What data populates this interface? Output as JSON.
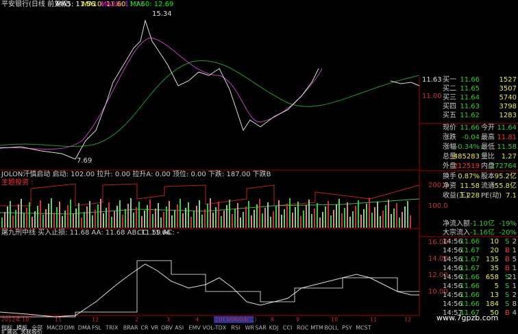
{
  "header": {
    "title": "平安银行(日线 前复权)",
    "ma": [
      "MA5: 11.56",
      "MA10: 11.60",
      "MA20: 11.73",
      "MA60: 12.69"
    ]
  },
  "price_chart": {
    "high_label": "15.34",
    "low_label": "7.69",
    "price_ticks": [
      "11.63",
      "11.00"
    ]
  },
  "indicator1": {
    "title": "JOLON汗慎启动 启动: 102.00 拉升: 0.00 拉升A: 0.00 顶位: 0.00 下跌: 187.00 下跌B",
    "subtitle": "主题投资 :",
    "ticks": [
      "200.0",
      "100.0"
    ]
  },
  "indicator2": {
    "title": "屠九刑中线 买入止损: 11.68 AA: 11.68 AB: 11.59 AC: -",
    "cc": "CC: 11.66",
    "ticks": [
      "16.00",
      "14.00",
      "12.00",
      "10.00"
    ]
  },
  "date_axis": [
    "2012年",
    "10",
    "11",
    "12",
    "2",
    "3",
    "4",
    "2013/06/04(二)",
    "8",
    "9",
    "10",
    "11",
    "12"
  ],
  "quote": {
    "bids": [
      [
        "买一",
        "11.66",
        "1527"
      ],
      [
        "买二",
        "11.65",
        "3507"
      ],
      [
        "买三",
        "11.64",
        "5740"
      ],
      [
        "买四",
        "11.63",
        "3798"
      ],
      [
        "买五",
        "11.62",
        "1283"
      ]
    ],
    "stats": [
      [
        "现价",
        "11.66",
        "今开",
        "11.64"
      ],
      [
        "涨跌",
        "-0.04",
        "最高",
        "11.81"
      ],
      [
        "涨幅",
        "-0.34%",
        "最低",
        "11.58"
      ],
      [
        "总量",
        "485283",
        "量比",
        "1.27"
      ],
      [
        "外盘",
        "212519",
        "内盘",
        "272764"
      ]
    ],
    "extra": [
      [
        "换手",
        "0.87%",
        "股本",
        "95.2亿"
      ],
      [
        "净资",
        "11.58",
        "流通",
        "55.8亿"
      ],
      [
        "收益(三)",
        "1.228",
        "PE(动)",
        "7.1"
      ]
    ],
    "flows": [
      [
        "净流入额",
        "-1.10亿",
        "-19%"
      ],
      [
        "大宗流入",
        "-1.16亿",
        "-20%"
      ]
    ]
  },
  "trades": [
    [
      "14:56",
      "11.66",
      "10",
      "S",
      "2"
    ],
    [
      "14:56",
      "11.67",
      "20",
      "B",
      "1"
    ],
    [
      "14:56",
      "11.67",
      "135",
      "B",
      "5"
    ],
    [
      "14:56",
      "11.67",
      "35",
      "B",
      "1"
    ],
    [
      "14:56",
      "11.66",
      "658",
      "S",
      "21"
    ],
    [
      "14:56",
      "11.66",
      "5",
      "S",
      "1"
    ],
    [
      "14:56",
      "11.66",
      "13",
      "S",
      "2"
    ],
    [
      "14:56",
      "11.66",
      "184",
      "S",
      "8"
    ],
    [
      "14:57",
      "11.67",
      "50",
      "B",
      "4"
    ]
  ],
  "tabs": [
    "指标",
    "模板",
    "全部",
    "MACD",
    "DMI",
    "DMA",
    "FSL",
    "TRIX",
    "BRAR",
    "CR",
    "VR",
    "OBV",
    "ASI",
    "EMV",
    "VOL-TDX",
    "RSI",
    "WR",
    "SAR",
    "KDJ",
    "CCI",
    "ROC",
    "MTM",
    "BOLL",
    "PSY",
    "MCST"
  ],
  "bottom_tabs": [
    "扩展区",
    "关联报价"
  ],
  "watermark": "www.7gpzb.com"
}
